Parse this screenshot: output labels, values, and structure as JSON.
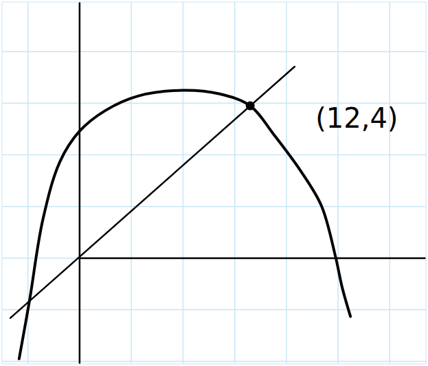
{
  "chart_data": {
    "type": "line",
    "xlim": [
      -1.5,
      6.7
    ],
    "ylim": [
      -2.05,
      4.96
    ],
    "xticks": [
      -1,
      0,
      1,
      2,
      3,
      4,
      5,
      6
    ],
    "yticks": [
      -2,
      -1,
      0,
      1,
      2,
      3,
      4
    ],
    "grid": true,
    "tick_labels": false,
    "series": [
      {
        "type": "line",
        "color": "#000000",
        "line_style": "solid",
        "x": [
          -1.17,
          -0.97,
          -0.71,
          -0.38,
          0,
          0.5,
          1.13,
          1.99,
          2.71,
          3.3,
          3.76,
          4.29,
          4.68,
          4.95,
          5.08,
          5.24
        ],
        "values": [
          -1.95,
          -0.83,
          0.75,
          1.87,
          2.46,
          2.86,
          3.14,
          3.25,
          3.18,
          2.95,
          2.39,
          1.67,
          1.01,
          0.03,
          -0.57,
          -1.13
        ]
      },
      {
        "type": "line",
        "color": "#000000",
        "line_style": "solid",
        "x": [
          -1.34,
          4.16
        ],
        "values": [
          -1.16,
          3.71
        ]
      },
      {
        "type": "scatter",
        "color": "#000000",
        "marker": "circle",
        "x": [
          3.3
        ],
        "values": [
          2.95
        ]
      }
    ],
    "annotations": [
      {
        "text": "(12,4)",
        "x": 3.3,
        "y": 2.95
      }
    ]
  }
}
